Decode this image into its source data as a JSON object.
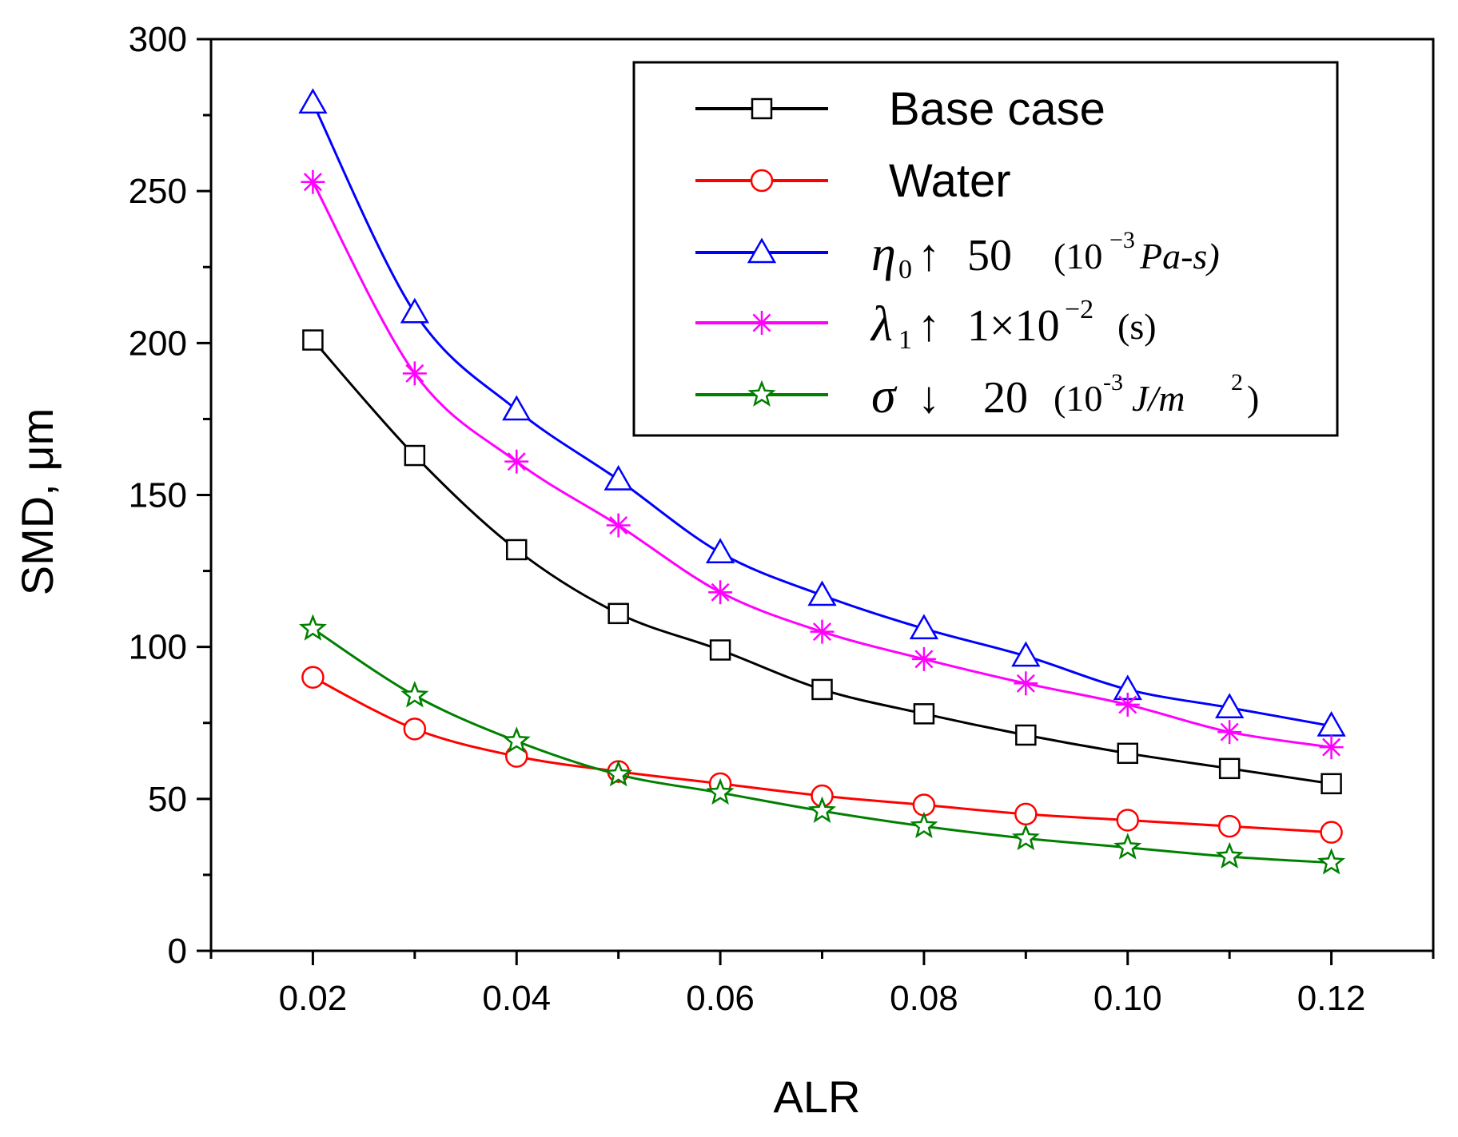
{
  "chart_data": {
    "type": "line",
    "xlabel": "ALR",
    "ylabel": "SMD, μm",
    "xlim": [
      0.01,
      0.13
    ],
    "ylim": [
      0,
      300
    ],
    "x_ticks": [
      "0.02",
      "0.04",
      "0.06",
      "0.08",
      "0.10",
      "0.12"
    ],
    "y_ticks": [
      "0",
      "50",
      "100",
      "150",
      "200",
      "250",
      "300"
    ],
    "legend_position": "top-right",
    "x": [
      0.02,
      0.03,
      0.04,
      0.05,
      0.06,
      0.07,
      0.08,
      0.09,
      0.1,
      0.11,
      0.12
    ],
    "series": [
      {
        "name": "Base case",
        "color": "#000000",
        "marker": "square",
        "values": [
          201,
          163,
          132,
          111,
          99,
          86,
          78,
          71,
          65,
          60,
          55
        ]
      },
      {
        "name": "Water",
        "color": "#ff0000",
        "marker": "circle",
        "values": [
          90,
          73,
          64,
          59,
          55,
          51,
          48,
          45,
          43,
          41,
          39
        ]
      },
      {
        "name": "η₀↑ 50 (10⁻³ Pa-s)",
        "color": "#0000ff",
        "marker": "triangle",
        "values": [
          279,
          210,
          178,
          155,
          131,
          117,
          106,
          97,
          86,
          80,
          74
        ]
      },
      {
        "name": "λ₁↑ 1×10⁻² (s)",
        "color": "#ff00ff",
        "marker": "asterisk",
        "values": [
          253,
          190,
          161,
          140,
          118,
          105,
          96,
          88,
          81,
          72,
          67
        ]
      },
      {
        "name": "σ↓ 20 (10⁻³ J/m²)",
        "color": "#008000",
        "marker": "star",
        "values": [
          106,
          84,
          69,
          58,
          52,
          46,
          41,
          37,
          34,
          31,
          29
        ]
      }
    ],
    "legend": [
      {
        "text": "Base case"
      },
      {
        "text": "Water"
      },
      {
        "symbol": "η",
        "sub": "0",
        "arrow": "↑",
        "value": "50",
        "unit": "(10",
        "unit_sup": "−3",
        "unit_rest": " Pa-s)"
      },
      {
        "symbol": "λ",
        "sub": "1",
        "arrow": "↑",
        "value": "1×10",
        "value_sup": "−2",
        "unit": "(s)"
      },
      {
        "symbol": "σ",
        "arrow": "↓",
        "value": "20",
        "unit": "(10",
        "unit_sup": "-3",
        "unit_rest": "J/m",
        "unit_sup2": "2",
        "unit_end": ")"
      }
    ]
  }
}
